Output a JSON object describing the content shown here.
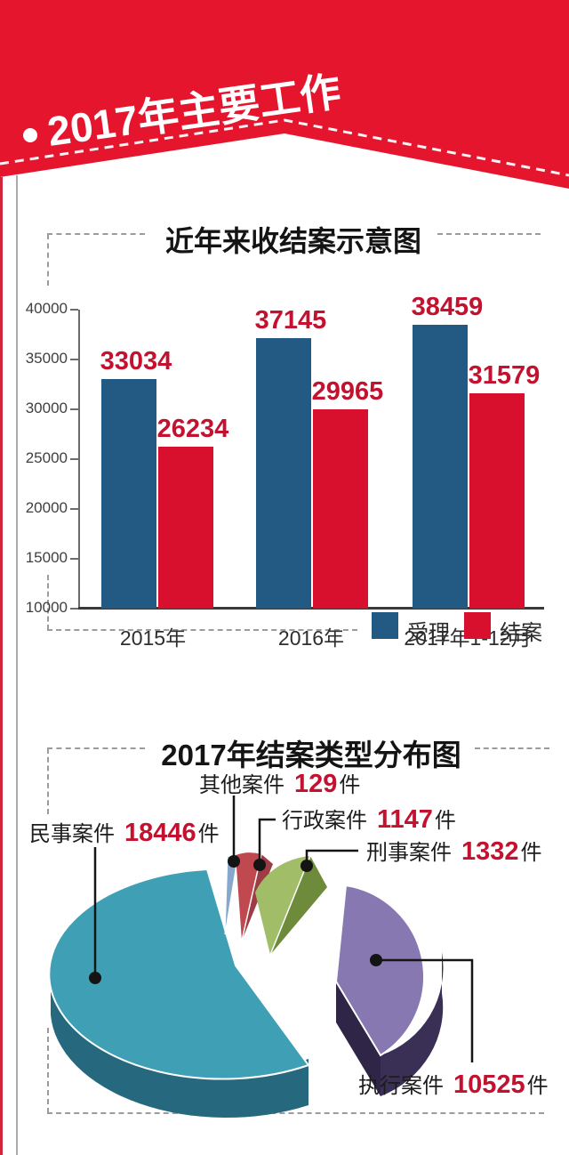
{
  "banner": {
    "title": "2017年主要工作",
    "bg_color": "#e5152e"
  },
  "chart_data": [
    {
      "type": "bar",
      "title": "近年来收结案示意图",
      "categories": [
        "2015年",
        "2016年",
        "2017年1-12月"
      ],
      "series": [
        {
          "name": "受理",
          "color": "#235a83",
          "values": [
            33034,
            37145,
            38459
          ]
        },
        {
          "name": "结案",
          "color": "#d8102e",
          "values": [
            26234,
            29965,
            31579
          ]
        }
      ],
      "ylim": [
        10000,
        40000
      ],
      "yticks": [
        10000,
        15000,
        20000,
        25000,
        30000,
        35000,
        40000
      ],
      "value_label_color": "#c3122f",
      "legend_position": "bottom-right",
      "grid": false
    },
    {
      "type": "pie",
      "title": "2017年结案类型分布图",
      "style": "3d-exploded",
      "slices": [
        {
          "label": "民事案件",
          "value": 18446,
          "unit": "件",
          "color": "#3fa0b5"
        },
        {
          "label": "其他案件",
          "value": 129,
          "unit": "件",
          "color": "#87a7cd"
        },
        {
          "label": "行政案件",
          "value": 1147,
          "unit": "件",
          "color": "#c0494f"
        },
        {
          "label": "刑事案件",
          "value": 1332,
          "unit": "件",
          "color": "#a2bd68"
        },
        {
          "label": "执行案件",
          "value": 10525,
          "unit": "件",
          "color": "#8878b1"
        }
      ]
    }
  ]
}
